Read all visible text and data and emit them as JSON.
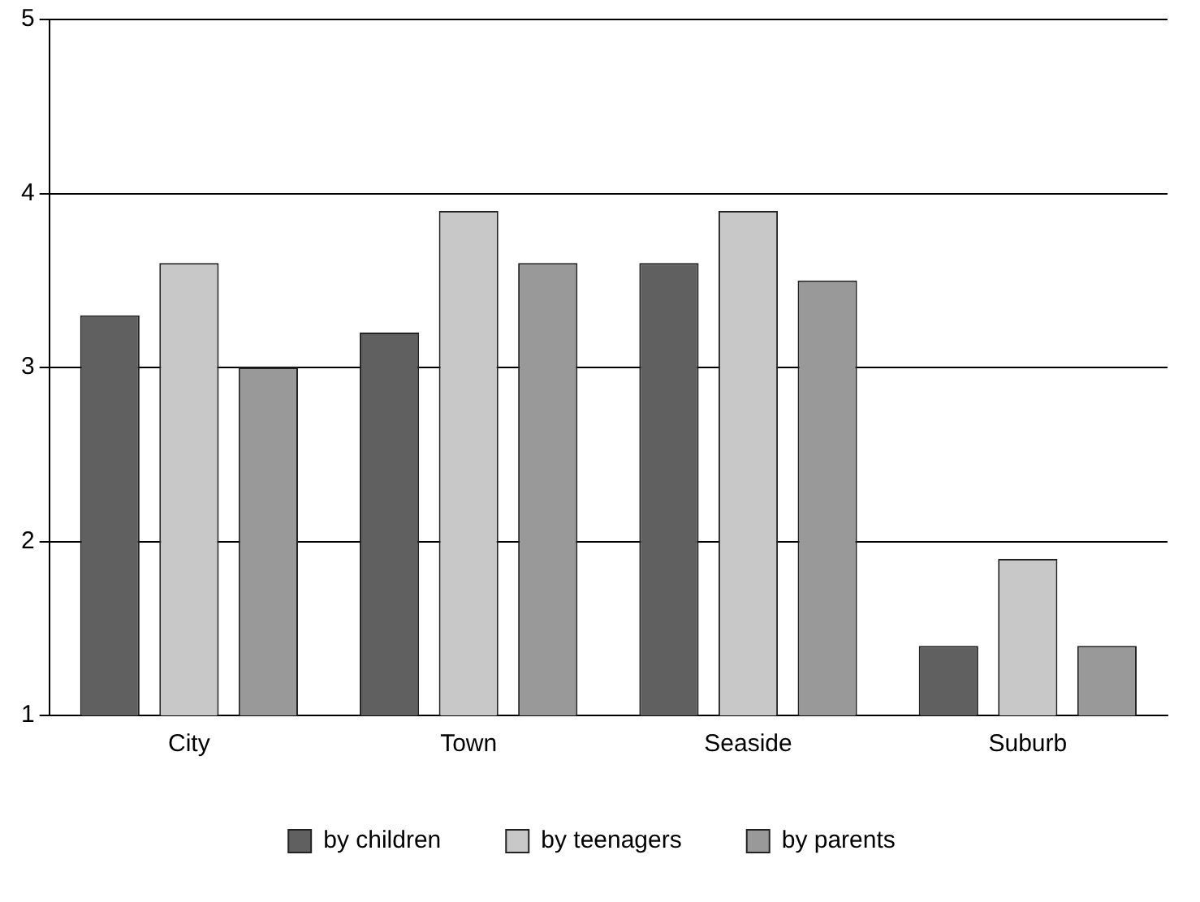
{
  "chart_data": {
    "type": "bar",
    "categories": [
      "City",
      "Town",
      "Seaside",
      "Suburb"
    ],
    "series": [
      {
        "name": "by children",
        "color": "#606060",
        "values": [
          3.3,
          3.2,
          3.6,
          1.4
        ]
      },
      {
        "name": "by teenagers",
        "color": "#c8c8c8",
        "values": [
          3.6,
          3.9,
          3.9,
          1.9
        ]
      },
      {
        "name": "by parents",
        "color": "#999999",
        "values": [
          3.0,
          3.6,
          3.5,
          1.4
        ]
      }
    ],
    "ylim": [
      1,
      5
    ],
    "yticks": [
      1,
      2,
      3,
      4,
      5
    ],
    "grid": "y",
    "legend": "bottom"
  }
}
